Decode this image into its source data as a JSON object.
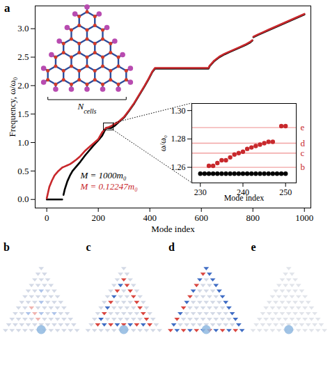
{
  "chart_data": {
    "type": "line",
    "panel_label": "a",
    "x_label": "Mode index",
    "y_label": "Frequency, ω/ω₀",
    "xlim": [
      -45,
      1025
    ],
    "ylim": [
      -0.15,
      3.4
    ],
    "xticks": [
      0,
      200,
      400,
      600,
      800,
      1000
    ],
    "yticks": [
      {
        "value": 0,
        "label": "0.0"
      },
      {
        "value": 0.5,
        "label": "0.5"
      },
      {
        "value": 1,
        "label": "1.0"
      },
      {
        "value": 1.5,
        "label": "1.5"
      },
      {
        "value": 2,
        "label": "2.0"
      },
      {
        "value": 2.5,
        "label": "2.5"
      },
      {
        "value": 3,
        "label": "3.0"
      }
    ],
    "legend": "lower left",
    "x": [
      0,
      10,
      20,
      30,
      45,
      60,
      62,
      65,
      70,
      80,
      90,
      100,
      115,
      130,
      150,
      165,
      180,
      200,
      215,
      230,
      240,
      250,
      265,
      280,
      300,
      320,
      340,
      360,
      380,
      395,
      410,
      420,
      500,
      600,
      628,
      632,
      650,
      670,
      690,
      710,
      730,
      750,
      770,
      790,
      798,
      800,
      802,
      820,
      840,
      860,
      880,
      900,
      920,
      940,
      960,
      980,
      1000
    ],
    "series": [
      {
        "name": "M = 1000m₀",
        "color": "#000000",
        "values": [
          0,
          0,
          0,
          0,
          0,
          0,
          null,
          0.08,
          0.18,
          0.32,
          0.42,
          0.5,
          0.58,
          0.66,
          0.78,
          0.86,
          0.94,
          1.04,
          1.12,
          1.2555,
          1.2555,
          1.2555,
          1.3,
          1.36,
          1.44,
          1.56,
          1.69,
          1.84,
          1.99,
          2.11,
          2.24,
          2.3,
          2.3,
          2.3,
          2.3,
          2.34,
          2.43,
          2.5,
          2.55,
          2.59,
          2.63,
          2.67,
          2.71,
          2.76,
          2.79,
          null,
          2.85,
          2.89,
          2.93,
          2.97,
          3.01,
          3.05,
          3.09,
          3.13,
          3.17,
          3.21,
          3.25
        ]
      },
      {
        "name": "M = 0.12247m₀",
        "color": "#c8282c",
        "values": [
          0.02,
          0.22,
          0.33,
          0.42,
          0.5,
          0.56,
          0.565,
          0.57,
          0.58,
          0.6,
          0.62,
          0.65,
          0.7,
          0.76,
          0.86,
          0.92,
          0.98,
          1.06,
          1.18,
          1.258,
          1.271,
          1.289,
          1.33,
          1.37,
          1.45,
          1.57,
          1.7,
          1.85,
          2.0,
          2.12,
          2.25,
          2.31,
          2.31,
          2.31,
          2.31,
          2.35,
          2.44,
          2.51,
          2.56,
          2.6,
          2.64,
          2.68,
          2.72,
          2.77,
          2.8,
          null,
          2.86,
          2.9,
          2.94,
          2.98,
          3.02,
          3.06,
          3.1,
          3.14,
          3.18,
          3.22,
          3.26
        ]
      }
    ],
    "inset": {
      "type": "scatter",
      "x_label": "Mode index",
      "y_label": "ω/ω₀",
      "xlim": [
        228,
        252.5
      ],
      "ylim": [
        1.249,
        1.305
      ],
      "xticks": [
        230,
        240,
        250
      ],
      "yticks": [
        1.26,
        1.28,
        {
          "value": 1.3,
          "label": "1.30"
        }
      ],
      "series": [
        {
          "color": "#000000",
          "x": [
            230,
            231,
            232,
            233,
            234,
            235,
            236,
            237,
            238,
            239,
            240,
            241,
            242,
            243,
            244,
            245,
            246,
            247,
            248,
            249,
            250
          ],
          "values": [
            1.2555,
            1.2555,
            1.2555,
            1.2555,
            1.2555,
            1.2555,
            1.2555,
            1.2555,
            1.2555,
            1.2555,
            1.2555,
            1.2555,
            1.2555,
            1.2555,
            1.2555,
            1.2555,
            1.2555,
            1.2555,
            1.2555,
            1.2555,
            1.2555
          ]
        },
        {
          "color": "#c8282c",
          "x": [
            232,
            233,
            234,
            235,
            236,
            237,
            238,
            239,
            240,
            241,
            242,
            243,
            244,
            245,
            246,
            247,
            249,
            250
          ],
          "values": [
            1.261,
            1.261,
            1.263,
            1.265,
            1.265,
            1.267,
            1.269,
            1.27,
            1.271,
            1.273,
            1.274,
            1.275,
            1.276,
            1.277,
            1.278,
            1.278,
            1.289,
            1.289
          ]
        }
      ],
      "reference_lines": [
        {
          "label": "b",
          "value": 1.26
        },
        {
          "label": "c",
          "value": 1.27
        },
        {
          "label": "d",
          "value": 1.277
        },
        {
          "label": "e",
          "value": 1.288
        }
      ]
    },
    "lattice_label": {
      "symbol": "N",
      "subscript": "cells"
    },
    "panels": [
      "b",
      "c",
      "d",
      "e"
    ]
  }
}
